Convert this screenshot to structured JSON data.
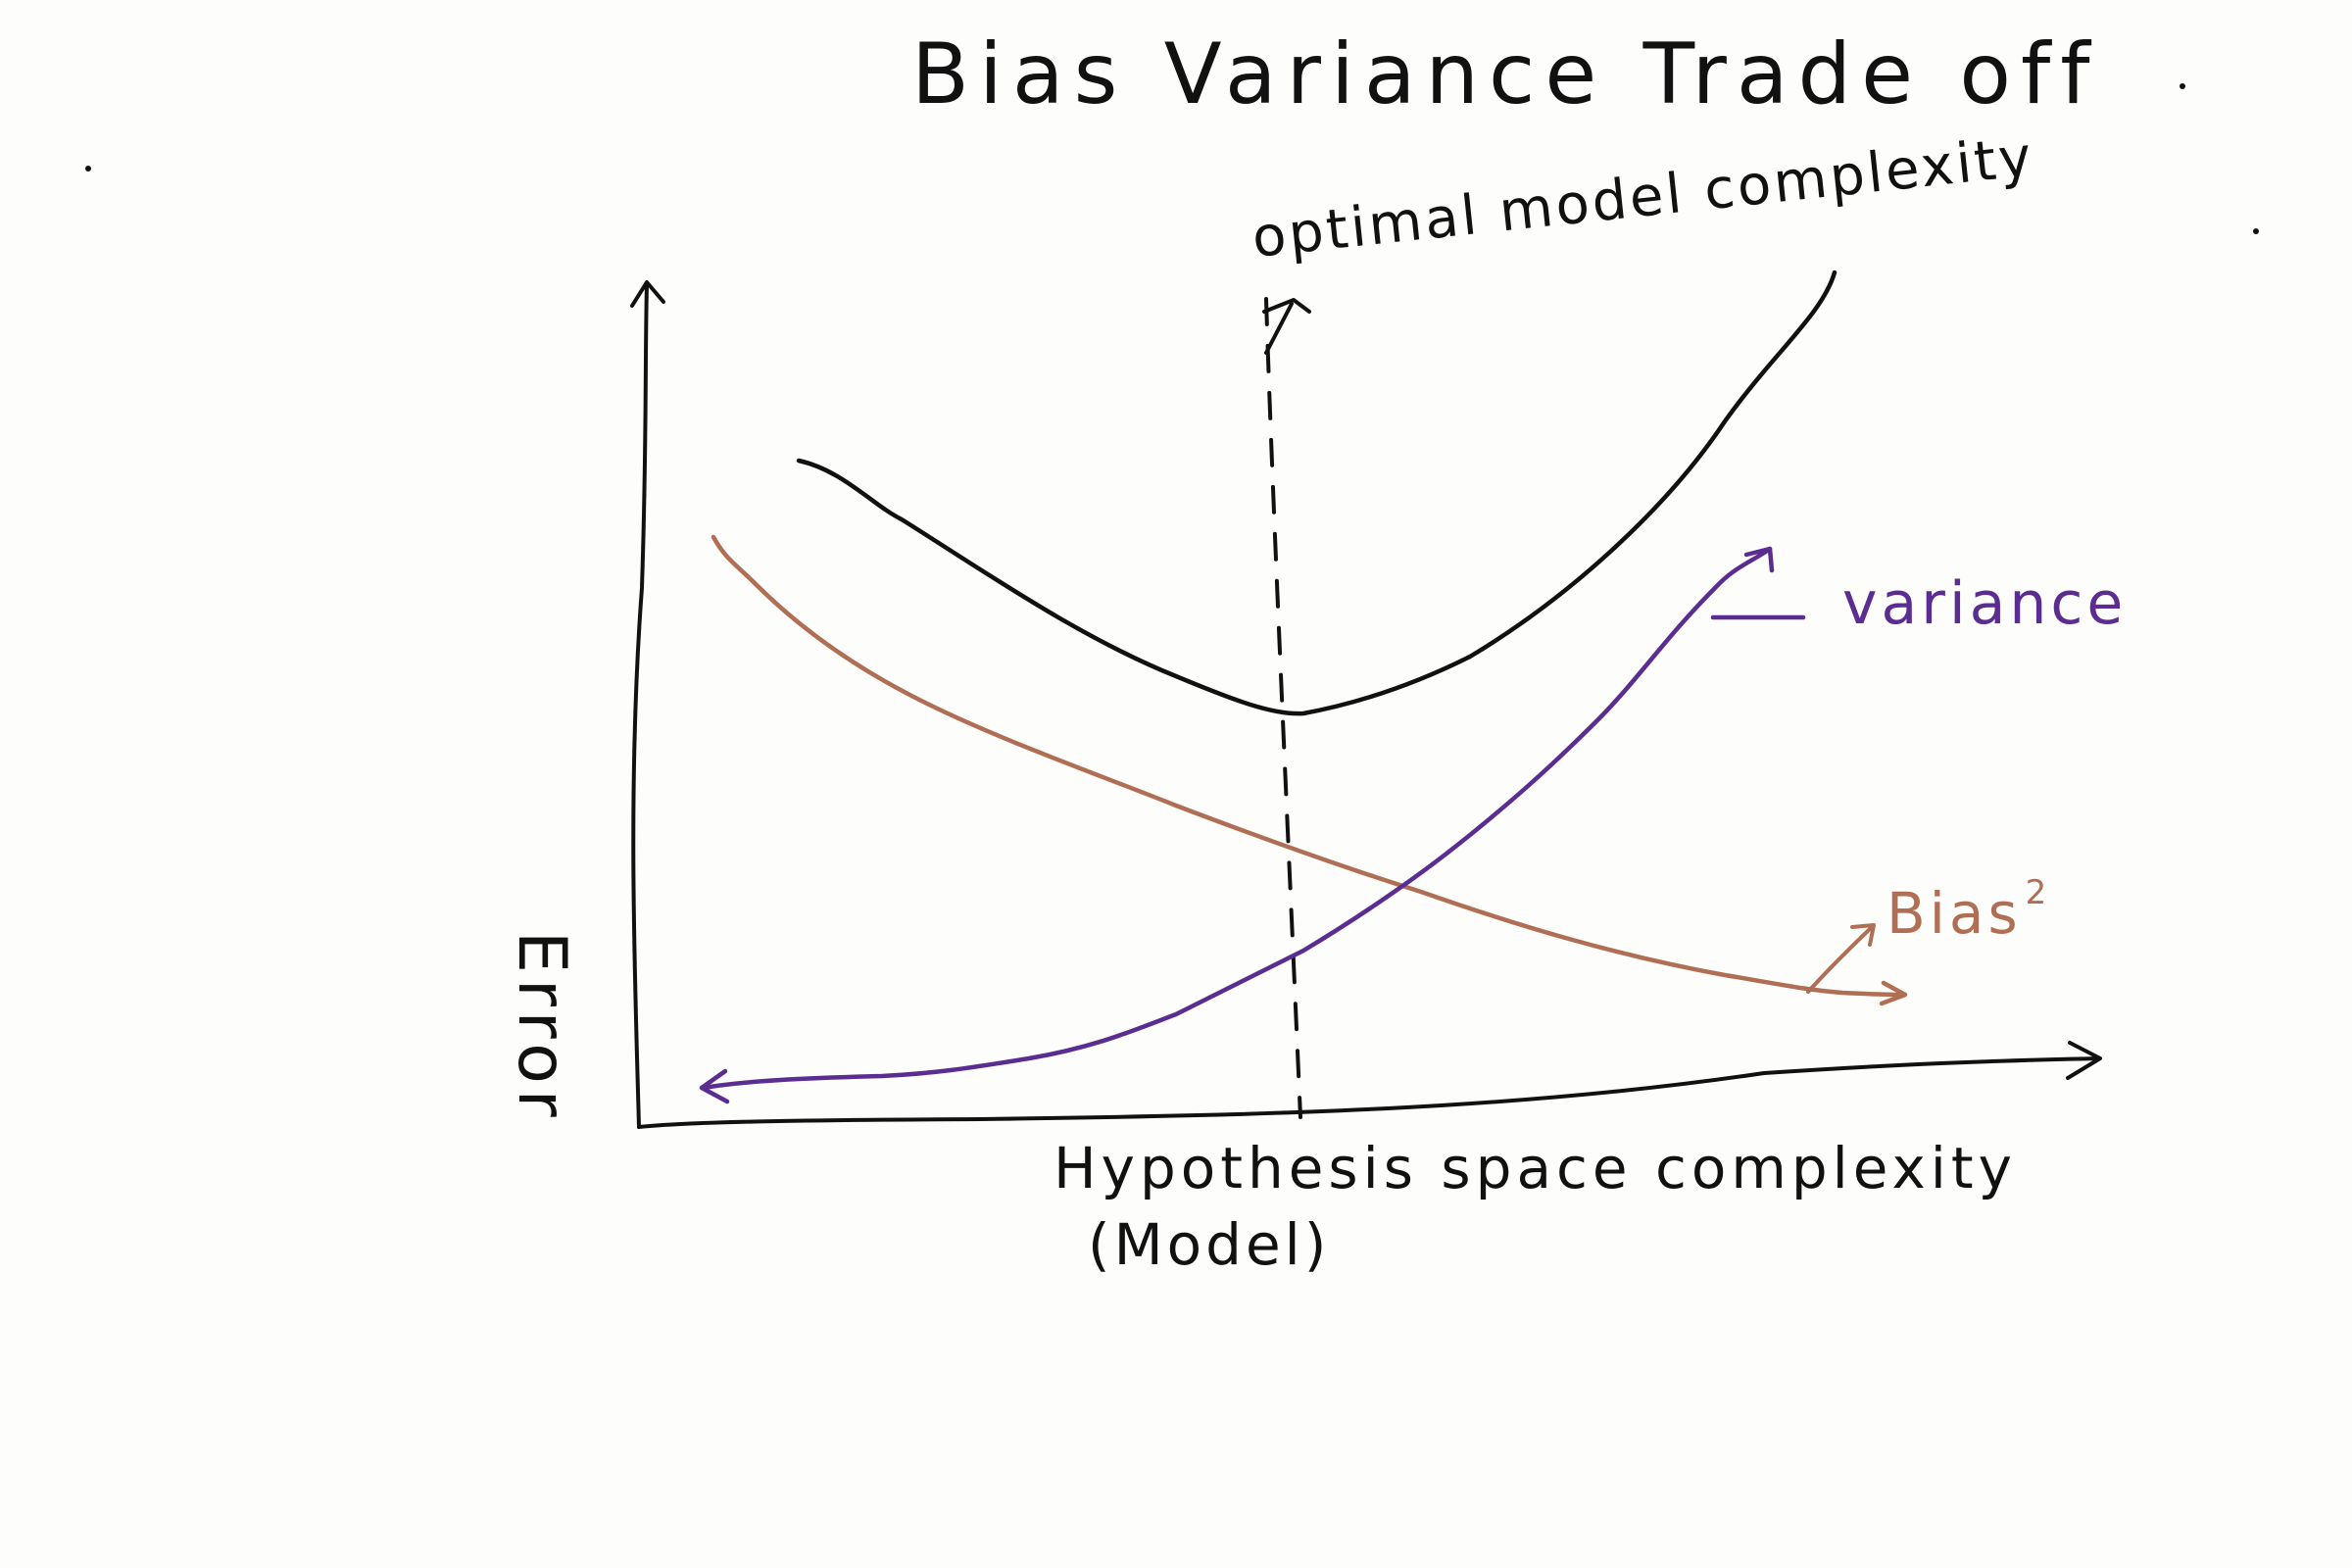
{
  "title": "Bias Variance Trade off",
  "annotation": "optimal model complexity",
  "y_axis_label": "Error",
  "x_axis_label_line1": "Hypothesis space complexity",
  "x_axis_label_line2": "(Model)",
  "curves": {
    "total_error": {
      "label": "",
      "color": "#111111"
    },
    "variance": {
      "label": "variance",
      "color": "#5b2d91"
    },
    "bias": {
      "label": "Bias",
      "superscript": "2",
      "color": "#b06f54"
    }
  }
}
